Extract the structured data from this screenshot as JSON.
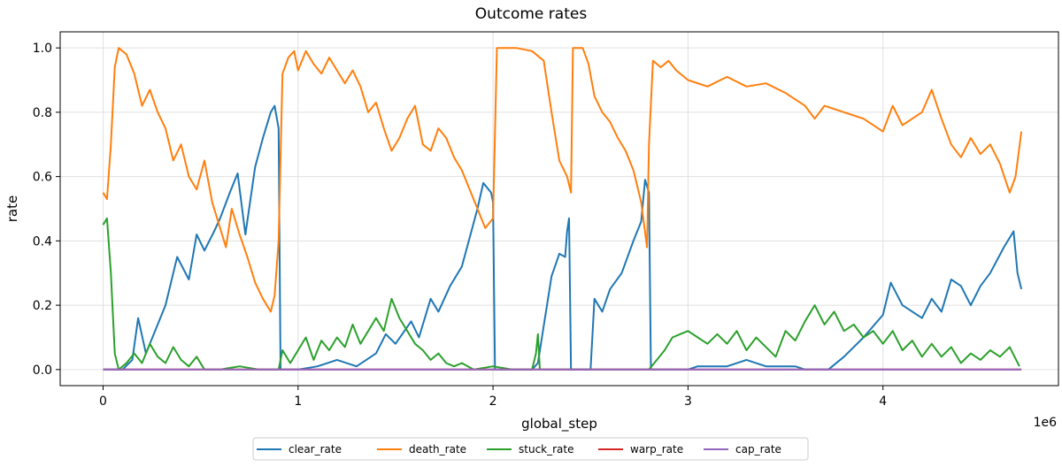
{
  "chart_data": {
    "type": "line",
    "title": "Outcome rates",
    "xlabel": "global_step",
    "ylabel": "rate",
    "x_offset_label": "1e6",
    "xlim": [
      -0.22,
      4.9
    ],
    "ylim": [
      -0.05,
      1.05
    ],
    "x_ticks": [
      0,
      1,
      2,
      3,
      4
    ],
    "x_tick_labels": [
      "0",
      "1",
      "2",
      "3",
      "4"
    ],
    "y_ticks": [
      0.0,
      0.2,
      0.4,
      0.6,
      0.8,
      1.0
    ],
    "y_tick_labels": [
      "0.0",
      "0.2",
      "0.4",
      "0.6",
      "0.8",
      "1.0"
    ],
    "grid": true,
    "legend_position": "bottom-center",
    "series": [
      {
        "name": "clear_rate",
        "color": "#1f77b4",
        "points": [
          [
            0.0,
            0.0
          ],
          [
            0.1,
            0.0
          ],
          [
            0.15,
            0.03
          ],
          [
            0.18,
            0.16
          ],
          [
            0.22,
            0.05
          ],
          [
            0.28,
            0.14
          ],
          [
            0.32,
            0.2
          ],
          [
            0.38,
            0.35
          ],
          [
            0.44,
            0.28
          ],
          [
            0.48,
            0.42
          ],
          [
            0.52,
            0.37
          ],
          [
            0.57,
            0.43
          ],
          [
            0.6,
            0.47
          ],
          [
            0.65,
            0.55
          ],
          [
            0.69,
            0.61
          ],
          [
            0.73,
            0.42
          ],
          [
            0.78,
            0.63
          ],
          [
            0.82,
            0.72
          ],
          [
            0.86,
            0.8
          ],
          [
            0.88,
            0.82
          ],
          [
            0.9,
            0.75
          ],
          [
            0.91,
            0.0
          ],
          [
            1.0,
            0.0
          ],
          [
            1.1,
            0.01
          ],
          [
            1.2,
            0.03
          ],
          [
            1.3,
            0.01
          ],
          [
            1.4,
            0.05
          ],
          [
            1.45,
            0.11
          ],
          [
            1.5,
            0.08
          ],
          [
            1.58,
            0.15
          ],
          [
            1.62,
            0.1
          ],
          [
            1.68,
            0.22
          ],
          [
            1.72,
            0.18
          ],
          [
            1.78,
            0.26
          ],
          [
            1.84,
            0.32
          ],
          [
            1.88,
            0.41
          ],
          [
            1.92,
            0.5
          ],
          [
            1.95,
            0.58
          ],
          [
            1.99,
            0.55
          ],
          [
            2.0,
            0.52
          ],
          [
            2.01,
            0.0
          ],
          [
            2.2,
            0.0
          ],
          [
            2.23,
            0.02
          ],
          [
            2.3,
            0.29
          ],
          [
            2.34,
            0.36
          ],
          [
            2.37,
            0.35
          ],
          [
            2.38,
            0.43
          ],
          [
            2.39,
            0.47
          ],
          [
            2.4,
            0.0
          ],
          [
            2.5,
            0.0
          ],
          [
            2.52,
            0.22
          ],
          [
            2.56,
            0.18
          ],
          [
            2.6,
            0.25
          ],
          [
            2.66,
            0.3
          ],
          [
            2.72,
            0.4
          ],
          [
            2.76,
            0.46
          ],
          [
            2.78,
            0.59
          ],
          [
            2.8,
            0.55
          ],
          [
            2.81,
            0.0
          ],
          [
            3.0,
            0.0
          ],
          [
            3.05,
            0.01
          ],
          [
            3.2,
            0.01
          ],
          [
            3.3,
            0.03
          ],
          [
            3.4,
            0.01
          ],
          [
            3.55,
            0.01
          ],
          [
            3.6,
            0.0
          ],
          [
            3.72,
            0.0
          ],
          [
            3.8,
            0.04
          ],
          [
            3.9,
            0.1
          ],
          [
            4.0,
            0.17
          ],
          [
            4.04,
            0.27
          ],
          [
            4.1,
            0.2
          ],
          [
            4.2,
            0.16
          ],
          [
            4.25,
            0.22
          ],
          [
            4.3,
            0.18
          ],
          [
            4.35,
            0.28
          ],
          [
            4.4,
            0.26
          ],
          [
            4.45,
            0.2
          ],
          [
            4.5,
            0.26
          ],
          [
            4.55,
            0.3
          ],
          [
            4.62,
            0.38
          ],
          [
            4.67,
            0.43
          ],
          [
            4.69,
            0.3
          ],
          [
            4.71,
            0.25
          ]
        ]
      },
      {
        "name": "death_rate",
        "color": "#ff7f0e",
        "points": [
          [
            0.0,
            0.55
          ],
          [
            0.02,
            0.53
          ],
          [
            0.04,
            0.7
          ],
          [
            0.06,
            0.94
          ],
          [
            0.08,
            1.0
          ],
          [
            0.12,
            0.98
          ],
          [
            0.16,
            0.92
          ],
          [
            0.2,
            0.82
          ],
          [
            0.24,
            0.87
          ],
          [
            0.28,
            0.8
          ],
          [
            0.32,
            0.75
          ],
          [
            0.36,
            0.65
          ],
          [
            0.4,
            0.7
          ],
          [
            0.44,
            0.6
          ],
          [
            0.48,
            0.56
          ],
          [
            0.52,
            0.65
          ],
          [
            0.56,
            0.52
          ],
          [
            0.6,
            0.44
          ],
          [
            0.63,
            0.38
          ],
          [
            0.66,
            0.5
          ],
          [
            0.7,
            0.42
          ],
          [
            0.74,
            0.35
          ],
          [
            0.78,
            0.27
          ],
          [
            0.82,
            0.22
          ],
          [
            0.86,
            0.18
          ],
          [
            0.88,
            0.23
          ],
          [
            0.9,
            0.4
          ],
          [
            0.92,
            0.92
          ],
          [
            0.95,
            0.97
          ],
          [
            0.98,
            0.99
          ],
          [
            1.0,
            0.93
          ],
          [
            1.04,
            0.99
          ],
          [
            1.08,
            0.95
          ],
          [
            1.12,
            0.92
          ],
          [
            1.16,
            0.97
          ],
          [
            1.2,
            0.93
          ],
          [
            1.24,
            0.89
          ],
          [
            1.28,
            0.93
          ],
          [
            1.32,
            0.88
          ],
          [
            1.36,
            0.8
          ],
          [
            1.4,
            0.83
          ],
          [
            1.44,
            0.75
          ],
          [
            1.48,
            0.68
          ],
          [
            1.52,
            0.72
          ],
          [
            1.56,
            0.78
          ],
          [
            1.6,
            0.82
          ],
          [
            1.64,
            0.7
          ],
          [
            1.68,
            0.68
          ],
          [
            1.72,
            0.75
          ],
          [
            1.76,
            0.72
          ],
          [
            1.8,
            0.66
          ],
          [
            1.84,
            0.62
          ],
          [
            1.88,
            0.56
          ],
          [
            1.92,
            0.5
          ],
          [
            1.96,
            0.44
          ],
          [
            2.0,
            0.47
          ],
          [
            2.02,
            1.0
          ],
          [
            2.12,
            1.0
          ],
          [
            2.2,
            0.99
          ],
          [
            2.26,
            0.96
          ],
          [
            2.3,
            0.8
          ],
          [
            2.34,
            0.65
          ],
          [
            2.38,
            0.6
          ],
          [
            2.4,
            0.55
          ],
          [
            2.41,
            1.0
          ],
          [
            2.46,
            1.0
          ],
          [
            2.49,
            0.95
          ],
          [
            2.52,
            0.85
          ],
          [
            2.56,
            0.8
          ],
          [
            2.6,
            0.77
          ],
          [
            2.64,
            0.72
          ],
          [
            2.68,
            0.68
          ],
          [
            2.72,
            0.62
          ],
          [
            2.76,
            0.52
          ],
          [
            2.79,
            0.38
          ],
          [
            2.8,
            0.7
          ],
          [
            2.82,
            0.96
          ],
          [
            2.86,
            0.94
          ],
          [
            2.9,
            0.96
          ],
          [
            2.94,
            0.93
          ],
          [
            3.0,
            0.9
          ],
          [
            3.1,
            0.88
          ],
          [
            3.2,
            0.91
          ],
          [
            3.3,
            0.88
          ],
          [
            3.4,
            0.89
          ],
          [
            3.5,
            0.86
          ],
          [
            3.6,
            0.82
          ],
          [
            3.65,
            0.78
          ],
          [
            3.7,
            0.82
          ],
          [
            3.8,
            0.8
          ],
          [
            3.9,
            0.78
          ],
          [
            4.0,
            0.74
          ],
          [
            4.05,
            0.82
          ],
          [
            4.1,
            0.76
          ],
          [
            4.15,
            0.78
          ],
          [
            4.2,
            0.8
          ],
          [
            4.25,
            0.87
          ],
          [
            4.3,
            0.78
          ],
          [
            4.35,
            0.7
          ],
          [
            4.4,
            0.66
          ],
          [
            4.45,
            0.72
          ],
          [
            4.5,
            0.67
          ],
          [
            4.55,
            0.7
          ],
          [
            4.6,
            0.64
          ],
          [
            4.65,
            0.55
          ],
          [
            4.68,
            0.6
          ],
          [
            4.71,
            0.74
          ]
        ]
      },
      {
        "name": "stuck_rate",
        "color": "#2ca02c",
        "points": [
          [
            0.0,
            0.45
          ],
          [
            0.02,
            0.47
          ],
          [
            0.04,
            0.3
          ],
          [
            0.06,
            0.05
          ],
          [
            0.08,
            0.0
          ],
          [
            0.12,
            0.02
          ],
          [
            0.16,
            0.05
          ],
          [
            0.2,
            0.02
          ],
          [
            0.24,
            0.08
          ],
          [
            0.28,
            0.04
          ],
          [
            0.32,
            0.02
          ],
          [
            0.36,
            0.07
          ],
          [
            0.4,
            0.03
          ],
          [
            0.44,
            0.01
          ],
          [
            0.48,
            0.04
          ],
          [
            0.52,
            0.0
          ],
          [
            0.6,
            0.0
          ],
          [
            0.7,
            0.01
          ],
          [
            0.8,
            0.0
          ],
          [
            0.9,
            0.0
          ],
          [
            0.92,
            0.06
          ],
          [
            0.96,
            0.02
          ],
          [
            1.0,
            0.06
          ],
          [
            1.04,
            0.1
          ],
          [
            1.08,
            0.03
          ],
          [
            1.12,
            0.09
          ],
          [
            1.16,
            0.06
          ],
          [
            1.2,
            0.1
          ],
          [
            1.24,
            0.07
          ],
          [
            1.28,
            0.14
          ],
          [
            1.32,
            0.08
          ],
          [
            1.36,
            0.12
          ],
          [
            1.4,
            0.16
          ],
          [
            1.44,
            0.12
          ],
          [
            1.48,
            0.22
          ],
          [
            1.52,
            0.16
          ],
          [
            1.56,
            0.12
          ],
          [
            1.6,
            0.08
          ],
          [
            1.64,
            0.06
          ],
          [
            1.68,
            0.03
          ],
          [
            1.72,
            0.05
          ],
          [
            1.76,
            0.02
          ],
          [
            1.8,
            0.01
          ],
          [
            1.84,
            0.02
          ],
          [
            1.9,
            0.0
          ],
          [
            2.0,
            0.01
          ],
          [
            2.1,
            0.0
          ],
          [
            2.2,
            0.0
          ],
          [
            2.22,
            0.05
          ],
          [
            2.23,
            0.11
          ],
          [
            2.24,
            0.0
          ],
          [
            2.7,
            0.0
          ],
          [
            2.8,
            0.0
          ],
          [
            2.84,
            0.03
          ],
          [
            2.88,
            0.06
          ],
          [
            2.92,
            0.1
          ],
          [
            2.96,
            0.11
          ],
          [
            3.0,
            0.12
          ],
          [
            3.05,
            0.1
          ],
          [
            3.1,
            0.08
          ],
          [
            3.15,
            0.11
          ],
          [
            3.2,
            0.08
          ],
          [
            3.25,
            0.12
          ],
          [
            3.3,
            0.06
          ],
          [
            3.35,
            0.1
          ],
          [
            3.4,
            0.07
          ],
          [
            3.45,
            0.04
          ],
          [
            3.5,
            0.12
          ],
          [
            3.55,
            0.09
          ],
          [
            3.6,
            0.15
          ],
          [
            3.65,
            0.2
          ],
          [
            3.7,
            0.14
          ],
          [
            3.75,
            0.18
          ],
          [
            3.8,
            0.12
          ],
          [
            3.85,
            0.14
          ],
          [
            3.9,
            0.1
          ],
          [
            3.95,
            0.12
          ],
          [
            4.0,
            0.08
          ],
          [
            4.05,
            0.12
          ],
          [
            4.1,
            0.06
          ],
          [
            4.15,
            0.09
          ],
          [
            4.2,
            0.04
          ],
          [
            4.25,
            0.08
          ],
          [
            4.3,
            0.04
          ],
          [
            4.35,
            0.07
          ],
          [
            4.4,
            0.02
          ],
          [
            4.45,
            0.05
          ],
          [
            4.5,
            0.03
          ],
          [
            4.55,
            0.06
          ],
          [
            4.6,
            0.04
          ],
          [
            4.65,
            0.07
          ],
          [
            4.7,
            0.01
          ]
        ]
      },
      {
        "name": "warp_rate",
        "color": "#d62728",
        "points": [
          [
            0.0,
            0.0
          ],
          [
            4.71,
            0.0
          ]
        ]
      },
      {
        "name": "cap_rate",
        "color": "#9467bd",
        "points": [
          [
            0.0,
            0.0
          ],
          [
            4.71,
            0.0
          ]
        ]
      }
    ]
  }
}
